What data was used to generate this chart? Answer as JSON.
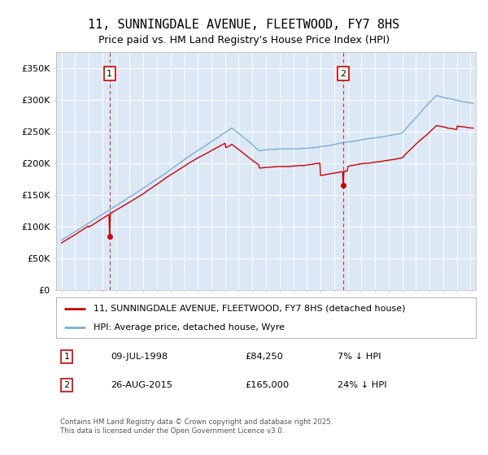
{
  "title": "11, SUNNINGDALE AVENUE, FLEETWOOD, FY7 8HS",
  "subtitle": "Price paid vs. HM Land Registry's House Price Index (HPI)",
  "ylim": [
    0,
    375000
  ],
  "yticks": [
    0,
    50000,
    100000,
    150000,
    200000,
    250000,
    300000,
    350000
  ],
  "ytick_labels": [
    "£0",
    "£50K",
    "£100K",
    "£150K",
    "£200K",
    "£250K",
    "£300K",
    "£350K"
  ],
  "xlim_start": 1994.6,
  "xlim_end": 2025.4,
  "hpi_color": "#7bafd4",
  "price_color": "#cc0000",
  "vline_color": "#cc0000",
  "plot_bg": "#dce8f5",
  "fig_bg": "#ffffff",
  "sale1_x": 1998.52,
  "sale1_y": 84250,
  "sale1_label": "1",
  "sale1_date": "09-JUL-1998",
  "sale1_price": "£84,250",
  "sale1_note": "7% ↓ HPI",
  "sale2_x": 2015.65,
  "sale2_y": 165000,
  "sale2_label": "2",
  "sale2_date": "26-AUG-2015",
  "sale2_price": "£165,000",
  "sale2_note": "24% ↓ HPI",
  "legend_line1": "11, SUNNINGDALE AVENUE, FLEETWOOD, FY7 8HS (detached house)",
  "legend_line2": "HPI: Average price, detached house, Wyre",
  "footer": "Contains HM Land Registry data © Crown copyright and database right 2025.\nThis data is licensed under the Open Government Licence v3.0.",
  "title_fontsize": 11,
  "subtitle_fontsize": 9,
  "tick_fontsize": 8,
  "legend_fontsize": 8
}
